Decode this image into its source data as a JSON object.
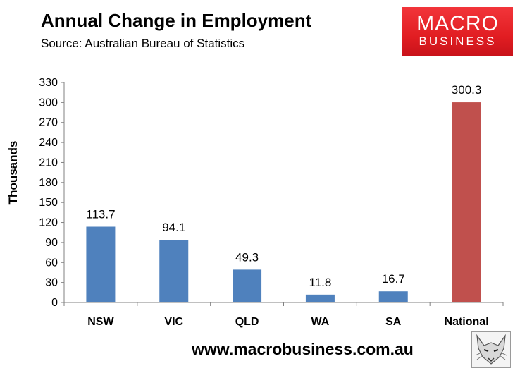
{
  "header": {
    "title": "Annual Change in Employment",
    "subtitle": "Source: Australian Bureau of Statistics"
  },
  "logo": {
    "line1": "MACRO",
    "line2": "BUSINESS",
    "color": "#e11d22"
  },
  "footer": {
    "url": "www.macrobusiness.com.au",
    "icon": "fox-icon"
  },
  "chart_data": {
    "type": "bar",
    "categories": [
      "NSW",
      "VIC",
      "QLD",
      "WA",
      "SA",
      "National"
    ],
    "values": [
      113.7,
      94.1,
      49.3,
      11.8,
      16.7,
      300.3
    ],
    "value_labels": [
      "113.7",
      "94.1",
      "49.3",
      "11.8",
      "16.7",
      "300.3"
    ],
    "colors": [
      "#4f81bd",
      "#4f81bd",
      "#4f81bd",
      "#4f81bd",
      "#4f81bd",
      "#c0504d"
    ],
    "ylabel": "Thousands",
    "xlabel": "",
    "ylim": [
      0,
      330
    ],
    "yticks": [
      0,
      30,
      60,
      90,
      120,
      150,
      180,
      210,
      240,
      270,
      300,
      330
    ],
    "grid": false,
    "legend": "none"
  }
}
